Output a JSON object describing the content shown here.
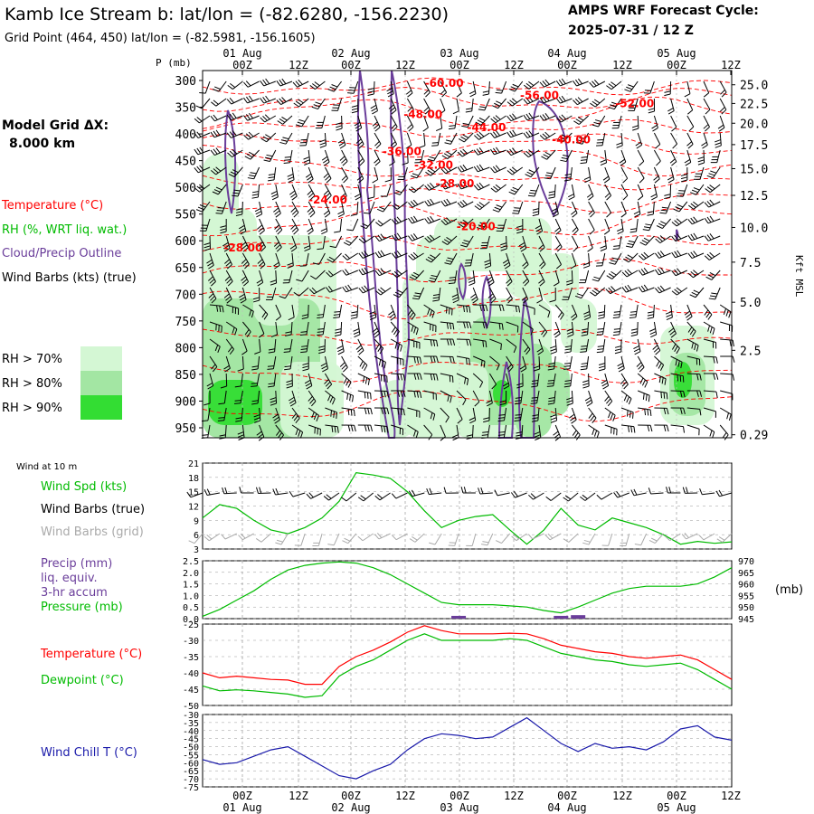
{
  "header": {
    "title": "Kamb Ice Stream b:  lat/lon = (-82.6280, -156.2230)",
    "subtitle": "Grid Point (464, 450) lat/lon = (-82.5981, -156.1605)",
    "cycle_line1": "AMPS WRF Forecast Cycle:",
    "cycle_line2": "2025-07-31 / 12  Z",
    "model_grid_line1": "Model Grid ΔX:",
    "model_grid_line2": "8.000 km"
  },
  "colors": {
    "temperature": "#ff0000",
    "rh": "#00bb00",
    "cloud": "#6a3d9a",
    "wind_barb": "#000000",
    "wind_barb_grid": "#aaaaaa",
    "wind_chill": "#1a1aaa",
    "rh70": "#d4f7d4",
    "rh80": "#a3e6a3",
    "rh90": "#33dd33",
    "grid": "#999999"
  },
  "time_axis": {
    "tick_labels": [
      "00Z",
      "12Z",
      "00Z",
      "12Z",
      "00Z",
      "12Z",
      "00Z",
      "12Z",
      "00Z",
      "12Z"
    ],
    "day_labels": [
      "01 Aug",
      "02 Aug",
      "03 Aug",
      "04 Aug",
      "05 Aug"
    ],
    "forecast_hours_start": 12,
    "forecast_hours_end": 120
  },
  "chart_data": [
    {
      "type": "heatmap",
      "name": "time-height cross section",
      "legend": {
        "temperature": "Temperature (°C)",
        "rh": "RH (%, WRT liq. wat.)",
        "cloud": "Cloud/Precip Outline",
        "barbs": "Wind Barbs (kts) (true)",
        "rh_bins": [
          "RH > 70%",
          "RH > 80%",
          "RH > 90%"
        ]
      },
      "y_axis_title": "P (mb)",
      "pressure_levels": [
        300,
        350,
        400,
        450,
        500,
        550,
        600,
        650,
        700,
        750,
        800,
        850,
        900,
        950
      ],
      "right_axis_title": "Kft MSL",
      "height_labels": [
        {
          "p": 308,
          "label": "25.0"
        },
        {
          "p": 343,
          "label": "22.5"
        },
        {
          "p": 380,
          "label": "20.0"
        },
        {
          "p": 420,
          "label": "17.5"
        },
        {
          "p": 465,
          "label": "15.0"
        },
        {
          "p": 515,
          "label": "12.5"
        },
        {
          "p": 575,
          "label": "10.0"
        },
        {
          "p": 640,
          "label": "7.5"
        },
        {
          "p": 715,
          "label": "5.0"
        },
        {
          "p": 805,
          "label": "2.5"
        },
        {
          "p": 963,
          "label": "0.29"
        }
      ],
      "temperature_labels": [
        {
          "t": 42,
          "p": 312,
          "label": "-60.00"
        },
        {
          "t": 60,
          "p": 335,
          "label": "-56.00"
        },
        {
          "t": 78,
          "p": 350,
          "label": "-52.00"
        },
        {
          "t": 38,
          "p": 370,
          "label": "-48.00"
        },
        {
          "t": 50,
          "p": 395,
          "label": "-44.00"
        },
        {
          "t": 66,
          "p": 418,
          "label": "-40.00"
        },
        {
          "t": 34,
          "p": 440,
          "label": "-36.00"
        },
        {
          "t": 40,
          "p": 465,
          "label": "-32.00"
        },
        {
          "t": 44,
          "p": 500,
          "label": "-28.00"
        },
        {
          "t": 20,
          "p": 530,
          "label": "-24.00"
        },
        {
          "t": 48,
          "p": 580,
          "label": "-20.00"
        },
        {
          "t": 4,
          "p": 620,
          "label": "-28.00"
        }
      ]
    },
    {
      "type": "line",
      "name": "wind at 10 m",
      "panel_label": "Wind at 10 m",
      "series_labels": {
        "speed": "Wind Spd (kts)",
        "barbs": "Wind Barbs (true)",
        "barbs_grid": "Wind Barbs (grid)"
      },
      "y_ticks": [
        3,
        6,
        9,
        12,
        15,
        18,
        21
      ],
      "ylim": [
        3,
        21
      ],
      "x": [
        12,
        18,
        24,
        30,
        36,
        42,
        48,
        54,
        60,
        66,
        72,
        78,
        84,
        90,
        96,
        102,
        108,
        114,
        120,
        126,
        132,
        138,
        144,
        150,
        156,
        162,
        168,
        174,
        180,
        186,
        192,
        198
      ],
      "wind_speed_kts": [
        9.5,
        12.3,
        11.5,
        9,
        7,
        6.2,
        7.5,
        9.5,
        13,
        19,
        18.5,
        17.8,
        15,
        11,
        7.5,
        9,
        9.8,
        10.2,
        7,
        4,
        7,
        11.5,
        8,
        7,
        9.5,
        8.5,
        7.5,
        6,
        4,
        4.6,
        4.2,
        4.5
      ]
    },
    {
      "type": "line",
      "name": "precip and pressure",
      "series_labels": {
        "precip": "Precip (mm)",
        "precip2": "liq. equiv.",
        "precip3": "3-hr accum",
        "pressure": "Pressure (mb)"
      },
      "precip_ticks": [
        "2.5",
        "2.0",
        "1.5",
        "1.0",
        "0.5",
        "0.0"
      ],
      "pressure_ticks": [
        "970",
        "965",
        "960",
        "955",
        "950",
        "945"
      ],
      "precip_lim": [
        0,
        2.5
      ],
      "pressure_lim": [
        945,
        970
      ],
      "right_unit": "(mb)",
      "x": [
        12,
        18,
        24,
        30,
        36,
        42,
        48,
        54,
        60,
        66,
        72,
        78,
        84,
        90,
        96,
        102,
        108,
        114,
        120,
        126,
        132,
        138,
        144,
        150,
        156,
        162,
        168,
        174,
        180,
        186,
        192,
        198
      ],
      "pressure_mb": [
        946,
        949,
        953,
        957,
        962,
        966,
        968,
        969,
        969.5,
        969,
        967,
        964,
        960,
        956,
        952,
        951,
        951,
        951,
        950.5,
        950,
        948.5,
        947.5,
        950,
        953,
        956,
        958,
        959,
        959,
        959,
        960,
        963,
        967
      ],
      "precip_mm": [
        0,
        0,
        0,
        0,
        0,
        0,
        0,
        0,
        0,
        0,
        0,
        0,
        0,
        0,
        0,
        0.12,
        0,
        0,
        0,
        0,
        0,
        0.12,
        0.15,
        0,
        0,
        0,
        0,
        0,
        0,
        0,
        0,
        0
      ]
    },
    {
      "type": "line",
      "name": "temperature and dewpoint",
      "series_labels": {
        "temperature": "Temperature (°C)",
        "dewpoint": "Dewpoint (°C)"
      },
      "y_ticks": [
        -25,
        -30,
        -35,
        -40,
        -45,
        -50
      ],
      "ylim": [
        -50,
        -25
      ],
      "x": [
        12,
        18,
        24,
        30,
        36,
        42,
        48,
        54,
        60,
        66,
        72,
        78,
        84,
        90,
        96,
        102,
        108,
        114,
        120,
        126,
        132,
        138,
        144,
        150,
        156,
        162,
        168,
        174,
        180,
        186,
        192,
        198
      ],
      "temperature": [
        -40,
        -41.5,
        -41,
        -41.5,
        -42,
        -42.2,
        -43.5,
        -43.5,
        -38,
        -35,
        -33,
        -30.5,
        -27.5,
        -25.5,
        -27,
        -28,
        -28,
        -28,
        -27.8,
        -28,
        -29.5,
        -31.5,
        -32.5,
        -33.5,
        -34,
        -35,
        -35.5,
        -35,
        -34.5,
        -36,
        -39,
        -42
      ],
      "dewpoint": [
        -44,
        -45.5,
        -45.2,
        -45.5,
        -46,
        -46.5,
        -47.5,
        -47,
        -41,
        -38,
        -36,
        -33,
        -30,
        -28,
        -30,
        -30,
        -30,
        -30,
        -29.5,
        -30,
        -32,
        -34,
        -35,
        -36,
        -36.5,
        -37.5,
        -38,
        -37.5,
        -37,
        -39,
        -42,
        -45
      ]
    },
    {
      "type": "line",
      "name": "wind chill",
      "series_labels": {
        "wind_chill": "Wind Chill T (°C)"
      },
      "y_ticks": [
        -30,
        -35,
        -40,
        -45,
        -50,
        -55,
        -60,
        -65,
        -70,
        -75
      ],
      "ylim": [
        -75,
        -30
      ],
      "x": [
        12,
        18,
        24,
        30,
        36,
        42,
        48,
        54,
        60,
        66,
        72,
        78,
        84,
        90,
        96,
        102,
        108,
        114,
        120,
        126,
        132,
        138,
        144,
        150,
        156,
        162,
        168,
        174,
        180,
        186,
        192,
        198
      ],
      "wind_chill": [
        -58,
        -61,
        -60,
        -56,
        -52,
        -50,
        -56,
        -62,
        -68,
        -70,
        -65,
        -61,
        -52,
        -45,
        -42,
        -43,
        -45,
        -44,
        -38,
        -32,
        -40,
        -48,
        -53,
        -48,
        -51,
        -50,
        -52,
        -47,
        -39,
        -37,
        -44,
        -46
      ]
    }
  ]
}
